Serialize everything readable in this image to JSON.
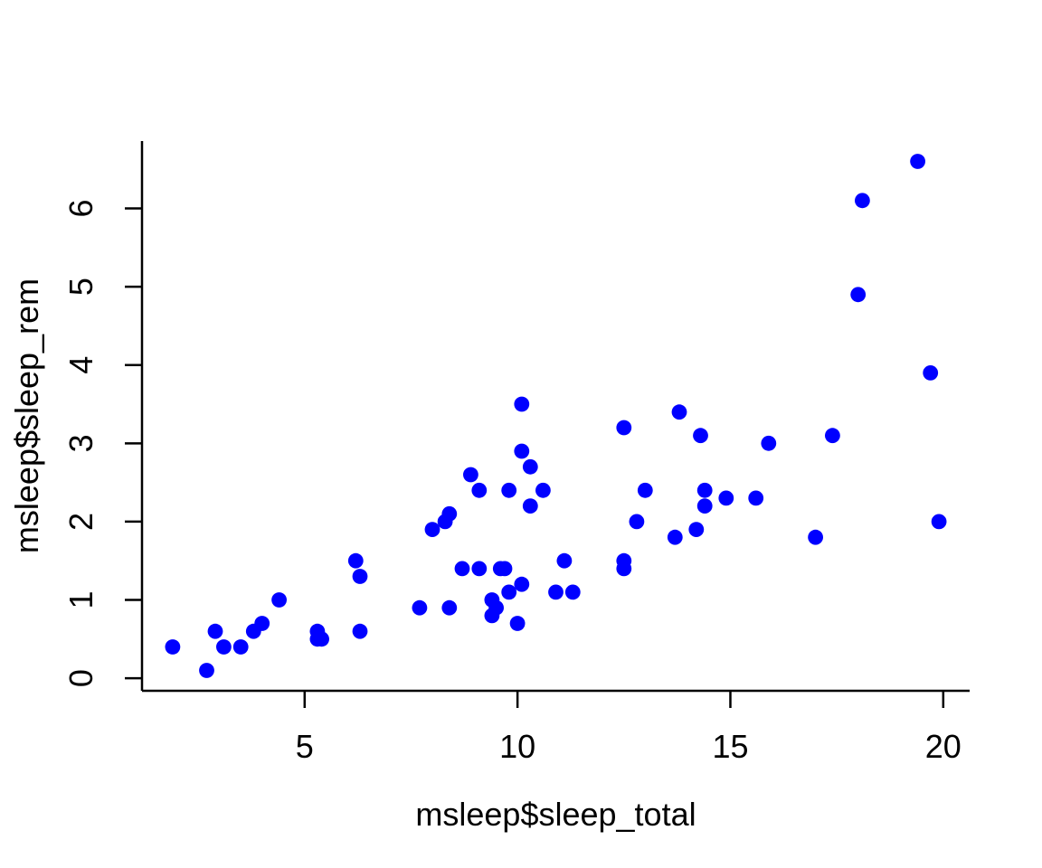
{
  "chart_data": {
    "type": "scatter",
    "title": "",
    "xlabel": "msleep$sleep_total",
    "ylabel": "msleep$sleep_rem",
    "x_ticks": [
      5,
      10,
      15,
      20
    ],
    "y_ticks": [
      0,
      1,
      2,
      3,
      4,
      5,
      6
    ],
    "xlim": [
      1.18,
      20.62
    ],
    "ylim": [
      -0.16,
      6.86
    ],
    "grid": false,
    "legend": null,
    "point_color": "#0000FF",
    "axis_color": "#000000",
    "background_color": "#FFFFFF",
    "n_points": 61,
    "points": [
      [
        17.0,
        1.8
      ],
      [
        14.4,
        2.4
      ],
      [
        14.9,
        2.3
      ],
      [
        4.0,
        0.7
      ],
      [
        14.4,
        2.2
      ],
      [
        8.7,
        1.4
      ],
      [
        10.1,
        2.9
      ],
      [
        5.3,
        0.6
      ],
      [
        9.4,
        0.8
      ],
      [
        10.0,
        0.7
      ],
      [
        12.5,
        1.5
      ],
      [
        10.3,
        2.2
      ],
      [
        8.3,
        2.0
      ],
      [
        9.1,
        1.4
      ],
      [
        17.4,
        3.1
      ],
      [
        5.3,
        0.5
      ],
      [
        18.0,
        4.9
      ],
      [
        19.7,
        3.9
      ],
      [
        2.9,
        0.6
      ],
      [
        3.1,
        0.4
      ],
      [
        10.1,
        3.5
      ],
      [
        10.9,
        1.1
      ],
      [
        12.5,
        3.2
      ],
      [
        9.8,
        1.1
      ],
      [
        1.9,
        0.4
      ],
      [
        2.7,
        0.1
      ],
      [
        6.2,
        1.5
      ],
      [
        6.3,
        0.6
      ],
      [
        8.0,
        1.9
      ],
      [
        9.5,
        0.9
      ],
      [
        19.4,
        6.6
      ],
      [
        10.1,
        1.2
      ],
      [
        14.3,
        3.1
      ],
      [
        12.5,
        1.4
      ],
      [
        19.9,
        2.0
      ],
      [
        7.7,
        0.9
      ],
      [
        8.4,
        0.9
      ],
      [
        3.8,
        0.6
      ],
      [
        9.7,
        1.4
      ],
      [
        9.4,
        1.0
      ],
      [
        10.3,
        2.7
      ],
      [
        13.7,
        1.8
      ],
      [
        3.5,
        0.4
      ],
      [
        11.1,
        1.5
      ],
      [
        18.1,
        6.1
      ],
      [
        5.4,
        0.5
      ],
      [
        13.0,
        2.4
      ],
      [
        9.6,
        1.4
      ],
      [
        8.4,
        2.1
      ],
      [
        11.3,
        1.1
      ],
      [
        10.6,
        2.4
      ],
      [
        13.8,
        3.4
      ],
      [
        15.9,
        3.0
      ],
      [
        12.8,
        2.0
      ],
      [
        9.1,
        2.4
      ],
      [
        4.4,
        1.0
      ],
      [
        15.6,
        2.3
      ],
      [
        8.9,
        2.6
      ],
      [
        6.3,
        1.3
      ],
      [
        9.8,
        2.4
      ],
      [
        14.2,
        1.9
      ]
    ]
  }
}
